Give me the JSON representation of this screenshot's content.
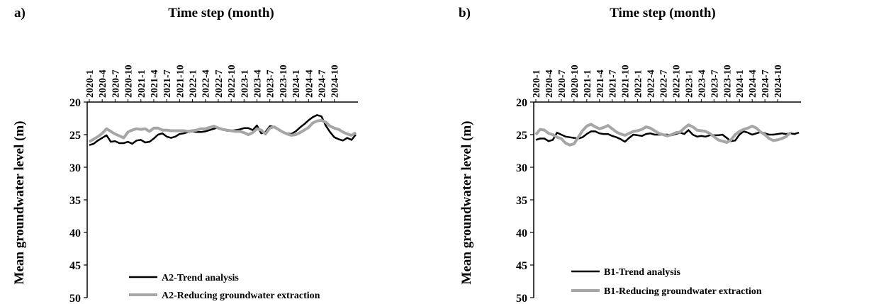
{
  "chart_data": [
    {
      "type": "line",
      "panel_label": "a)",
      "xlabel": "Time step (month)",
      "ylabel": "Mean groundwater level (m)",
      "x_tick_labels": [
        "2020-1",
        "2020-4",
        "2020-7",
        "2020-10",
        "2021-1",
        "2021-4",
        "2021-7",
        "2021-10",
        "2022-1",
        "2022-4",
        "2022-7",
        "2022-10",
        "2023-1",
        "2023-4",
        "2023-7",
        "2023-10",
        "2024-1",
        "2024-4",
        "2024-7",
        "2024-10"
      ],
      "x_axis_position": "top",
      "ylim": [
        20,
        50
      ],
      "y_inverted": true,
      "y_ticks": [
        20,
        25,
        30,
        35,
        40,
        45,
        50
      ],
      "legend_position": "bottom-left",
      "series": [
        {
          "name": "A2-Trend analysis",
          "color": "#000000",
          "values": [
            26.6,
            26.4,
            25.9,
            25.5,
            25.1,
            26.1,
            26.0,
            26.3,
            26.3,
            26.1,
            26.4,
            25.9,
            25.8,
            26.2,
            26.1,
            25.6,
            25.0,
            24.8,
            25.3,
            25.5,
            25.3,
            24.9,
            24.8,
            24.6,
            24.5,
            24.6,
            24.6,
            24.5,
            24.3,
            24.1,
            23.9,
            24.2,
            24.4,
            24.4,
            24.3,
            24.2,
            24.0,
            24.0,
            24.3,
            23.6,
            24.8,
            24.6,
            23.7,
            23.8,
            24.2,
            24.6,
            24.8,
            24.9,
            24.5,
            23.9,
            23.4,
            22.8,
            22.3,
            22.0,
            22.2,
            23.6,
            24.6,
            25.4,
            25.7,
            25.9,
            25.5,
            25.8,
            25.0
          ]
        },
        {
          "name": "A2-Reducing groundwater extraction",
          "color": "#a6a6a6",
          "values": [
            26.1,
            25.7,
            25.3,
            24.8,
            24.1,
            24.5,
            24.9,
            25.2,
            25.5,
            24.6,
            24.3,
            24.1,
            24.2,
            24.1,
            24.5,
            24.0,
            24.0,
            24.3,
            24.3,
            24.4,
            24.4,
            24.4,
            24.4,
            24.5,
            24.4,
            24.3,
            24.1,
            24.1,
            23.9,
            23.7,
            24.0,
            24.2,
            24.3,
            24.4,
            24.5,
            24.5,
            24.7,
            25.0,
            24.7,
            24.1,
            24.3,
            24.9,
            24.0,
            23.8,
            24.2,
            24.6,
            24.9,
            25.1,
            25.0,
            24.7,
            24.3,
            23.9,
            23.2,
            22.9,
            22.8,
            23.1,
            23.7,
            24.0,
            24.2,
            24.6,
            24.9,
            25.1,
            24.7
          ]
        }
      ]
    },
    {
      "type": "line",
      "panel_label": "b)",
      "xlabel": "Time step (month)",
      "ylabel": "Mean groundwater level (m)",
      "x_tick_labels": [
        "2020-1",
        "2020-4",
        "2020-7",
        "2020-10",
        "2021-1",
        "2021-4",
        "2021-7",
        "2021-10",
        "2022-1",
        "2022-4",
        "2022-7",
        "2022-10",
        "2023-1",
        "2023-4",
        "2023-7",
        "2023-10",
        "2024-1",
        "2024-4",
        "2024-7",
        "2024-10"
      ],
      "x_axis_position": "top",
      "ylim": [
        20,
        50
      ],
      "y_inverted": true,
      "y_ticks": [
        20,
        25,
        30,
        35,
        40,
        45,
        50
      ],
      "legend_position": "bottom-left",
      "series": [
        {
          "name": "B1-Trend analysis",
          "color": "#000000",
          "values": [
            25.8,
            25.6,
            25.6,
            26.0,
            25.8,
            24.7,
            25.0,
            25.3,
            25.4,
            25.5,
            25.6,
            25.4,
            24.9,
            24.5,
            24.5,
            24.8,
            24.9,
            24.9,
            25.2,
            25.4,
            25.7,
            26.1,
            25.5,
            25.0,
            25.1,
            25.2,
            24.9,
            24.8,
            25.0,
            25.0,
            25.0,
            25.0,
            25.1,
            24.9,
            24.7,
            24.9,
            24.3,
            25.0,
            25.3,
            25.2,
            25.3,
            25.1,
            25.1,
            25.1,
            25.0,
            25.5,
            26.0,
            25.9,
            25.0,
            24.5,
            24.7,
            25.0,
            24.8,
            24.6,
            24.8,
            25.0,
            25.0,
            24.9,
            24.8,
            24.9,
            24.8,
            24.9,
            24.7
          ]
        },
        {
          "name": "B1-Reducing groundwater extraction",
          "color": "#a6a6a6",
          "values": [
            25.0,
            24.2,
            24.3,
            24.8,
            25.0,
            25.4,
            25.6,
            26.3,
            26.6,
            26.4,
            25.4,
            24.4,
            23.7,
            23.4,
            23.8,
            24.1,
            23.9,
            23.6,
            24.1,
            24.6,
            24.9,
            25.1,
            24.8,
            24.5,
            24.4,
            24.2,
            23.8,
            24.0,
            24.4,
            24.8,
            25.0,
            25.2,
            25.0,
            24.7,
            24.6,
            24.0,
            23.5,
            23.8,
            24.3,
            24.4,
            24.5,
            24.8,
            25.3,
            25.8,
            26.0,
            26.2,
            25.8,
            25.0,
            24.5,
            24.2,
            24.0,
            23.7,
            24.0,
            24.6,
            25.0,
            25.6,
            25.9,
            25.8,
            25.6,
            25.3,
            24.7
          ]
        }
      ]
    }
  ]
}
